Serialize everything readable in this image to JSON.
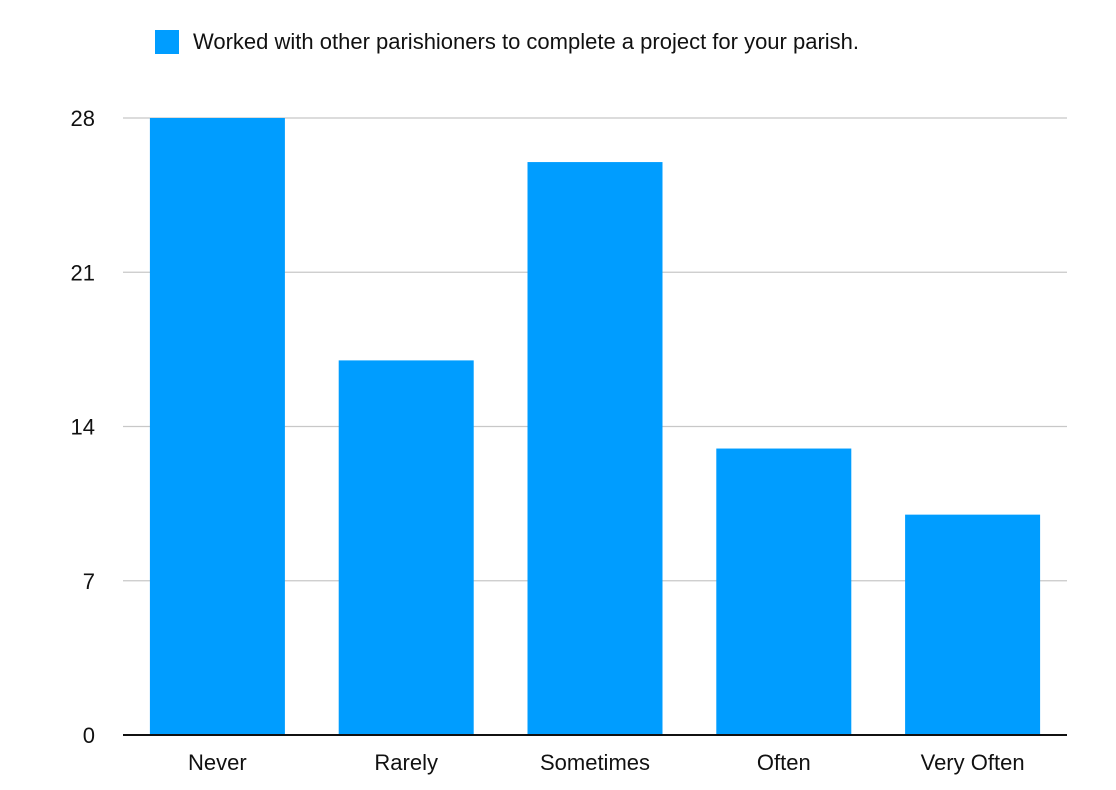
{
  "chart_data": {
    "type": "bar",
    "title": "",
    "xlabel": "",
    "ylabel": "",
    "categories": [
      "Never",
      "Rarely",
      "Sometimes",
      "Often",
      "Very Often"
    ],
    "series": [
      {
        "name": "Worked with other parishioners to complete a project for your parish.",
        "values": [
          28,
          17,
          26,
          13,
          10
        ]
      }
    ],
    "ylim": [
      0,
      28
    ],
    "yticks": [
      "0",
      "7",
      "14",
      "21",
      "28"
    ],
    "grid": true,
    "legend_position": "top",
    "colors": {
      "bar": "#009dff",
      "grid": "#c8c8c8",
      "axis": "#111111"
    }
  }
}
